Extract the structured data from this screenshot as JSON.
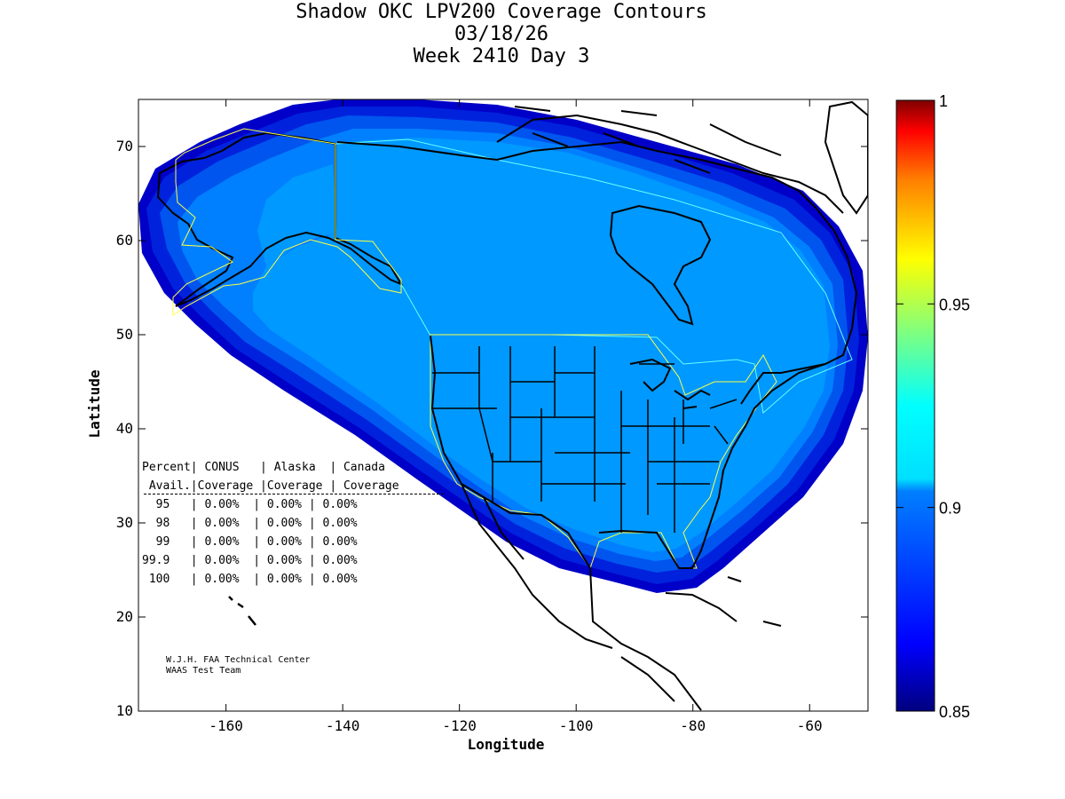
{
  "title": {
    "line1": "Shadow OKC LPV200 Coverage Contours",
    "line2": "03/18/26",
    "line3": "Week 2410 Day 3"
  },
  "axes": {
    "xlabel": "Longitude",
    "ylabel": "Latitude",
    "xticks": [
      "-160",
      "-140",
      "-120",
      "-100",
      "-80",
      "-60"
    ],
    "yticks": [
      "10",
      "20",
      "30",
      "40",
      "50",
      "60",
      "70"
    ],
    "xlim": [
      -175,
      -50
    ],
    "ylim": [
      10,
      75
    ]
  },
  "colorbar": {
    "ticks": [
      "0.85",
      "0.9",
      "0.95",
      "1"
    ],
    "range": [
      0.85,
      1
    ],
    "colors": [
      "#00007f",
      "#0000ff",
      "#007fff",
      "#00ffff",
      "#7fff7f",
      "#ffff00",
      "#ff7f00",
      "#ff0000",
      "#7f0000"
    ]
  },
  "colors": {
    "coverage_main": "#0099ff",
    "coverage_edge1": "#0080ff",
    "coverage_edge2": "#0055ee",
    "coverage_edge3": "#0022cc",
    "coverage_edge4": "#00008f",
    "conus_boundary": "#ffff00",
    "canada_boundary": "#00ffff",
    "coastline": "#000000"
  },
  "table": {
    "header1": "Percent| CONUS   | Alaska  | Canada",
    "header2": " Avail.|Coverage |Coverage | Coverage",
    "divider": "--------------------------------------",
    "rows": [
      "  95   | 0.00%  | 0.00% | 0.00%",
      "  98   | 0.00%  | 0.00% | 0.00%",
      "  99   | 0.00%  | 0.00% | 0.00%",
      "99.9   | 0.00%  | 0.00% | 0.00%",
      " 100   | 0.00%  | 0.00% | 0.00%"
    ]
  },
  "credit": {
    "line1": "W.J.H. FAA Technical Center",
    "line2": "WAAS Test Team"
  }
}
